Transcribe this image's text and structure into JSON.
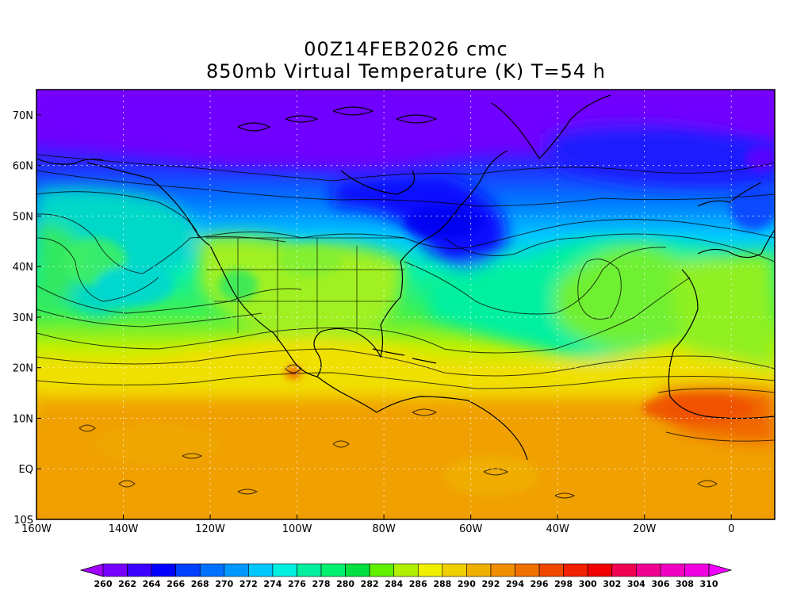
{
  "title": {
    "line1": "00Z14FEB2026 cmc",
    "line2": "850mb Virtual Temperature (K) T=54 h"
  },
  "axes": {
    "lat_ticks": [
      "70N",
      "60N",
      "50N",
      "40N",
      "30N",
      "20N",
      "10N",
      "EQ",
      "10S"
    ],
    "lat_values": [
      70,
      60,
      50,
      40,
      30,
      20,
      10,
      0,
      -10
    ],
    "lon_ticks": [
      "160W",
      "140W",
      "120W",
      "100W",
      "80W",
      "60W",
      "40W",
      "20W",
      "0"
    ],
    "lon_values": [
      -160,
      -140,
      -120,
      -100,
      -80,
      -60,
      -40,
      -20,
      0
    ],
    "lat_range": [
      -10,
      75
    ],
    "lon_range": [
      -160,
      10
    ],
    "grid": true
  },
  "colorbar": {
    "labels": [
      "260",
      "262",
      "264",
      "266",
      "268",
      "270",
      "272",
      "274",
      "276",
      "278",
      "280",
      "282",
      "284",
      "286",
      "288",
      "290",
      "292",
      "294",
      "296",
      "298",
      "300",
      "302",
      "304",
      "306",
      "308",
      "310"
    ],
    "colors": [
      "#a000ff",
      "#7800ff",
      "#3c00ff",
      "#0000ff",
      "#0040ff",
      "#0070ff",
      "#0098ff",
      "#00c8ff",
      "#00f0e0",
      "#00f0a0",
      "#00f070",
      "#00e040",
      "#60f000",
      "#b0f000",
      "#f0f000",
      "#f0d000",
      "#f0b000",
      "#f09000",
      "#f07000",
      "#f04800",
      "#f02000",
      "#f00000",
      "#f00050",
      "#f00090",
      "#f000c0",
      "#f000e0",
      "#f000ff"
    ]
  }
}
